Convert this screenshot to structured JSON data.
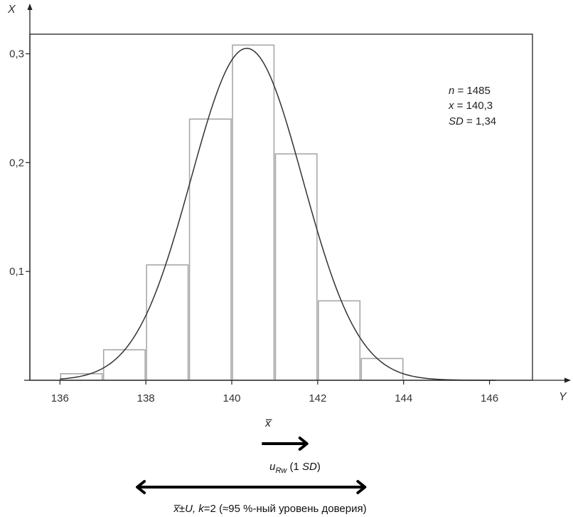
{
  "chart_data": {
    "type": "bar",
    "bins": [
      {
        "from": 136,
        "to": 137,
        "value": 0.006
      },
      {
        "from": 137,
        "to": 138,
        "value": 0.028
      },
      {
        "from": 138,
        "to": 139,
        "value": 0.106
      },
      {
        "from": 139,
        "to": 140,
        "value": 0.24
      },
      {
        "from": 140,
        "to": 141,
        "value": 0.308
      },
      {
        "from": 141,
        "to": 142,
        "value": 0.208
      },
      {
        "from": 142,
        "to": 143,
        "value": 0.073
      },
      {
        "from": 143,
        "to": 144,
        "value": 0.02
      }
    ],
    "curve": {
      "type": "normal",
      "mean": 140.35,
      "peak": 0.305
    },
    "x_ticks": [
      "136",
      "138",
      "140",
      "142",
      "144",
      "146"
    ],
    "x_tick_values": [
      136,
      138,
      140,
      142,
      144,
      146
    ],
    "y_ticks": [
      "0,1",
      "0,2",
      "0,3"
    ],
    "y_tick_values": [
      0.1,
      0.2,
      0.3
    ],
    "xlabel": "Y",
    "ylabel": "X",
    "xlim": [
      135.3,
      147.0
    ],
    "ylim": [
      0,
      0.318
    ],
    "grid": false,
    "annotations": {
      "n_label": "n",
      "n_value": " = 1485",
      "x_label": "x",
      "x_value": " = 140,3",
      "sd_label": "SD",
      "sd_value": " = 1,34"
    },
    "xbar_label": "x̅",
    "urw": {
      "symbol": "u",
      "subscript": "Rw",
      "paren_open": " (1 ",
      "sd": "SD",
      "paren_close": ")",
      "from": 140.7,
      "to": 141.75
    },
    "expanded": {
      "x_part": "x̅",
      "pm_u": "±U, ",
      "k_part": "k",
      "rest": "=2 (≈95 %-ный уровень доверия)",
      "from": 137.8,
      "to": 143.1
    },
    "colors": {
      "bar_stroke": "#a8a8a8",
      "curve": "#333333",
      "axis": "#222222",
      "arrow": "#000000"
    }
  }
}
